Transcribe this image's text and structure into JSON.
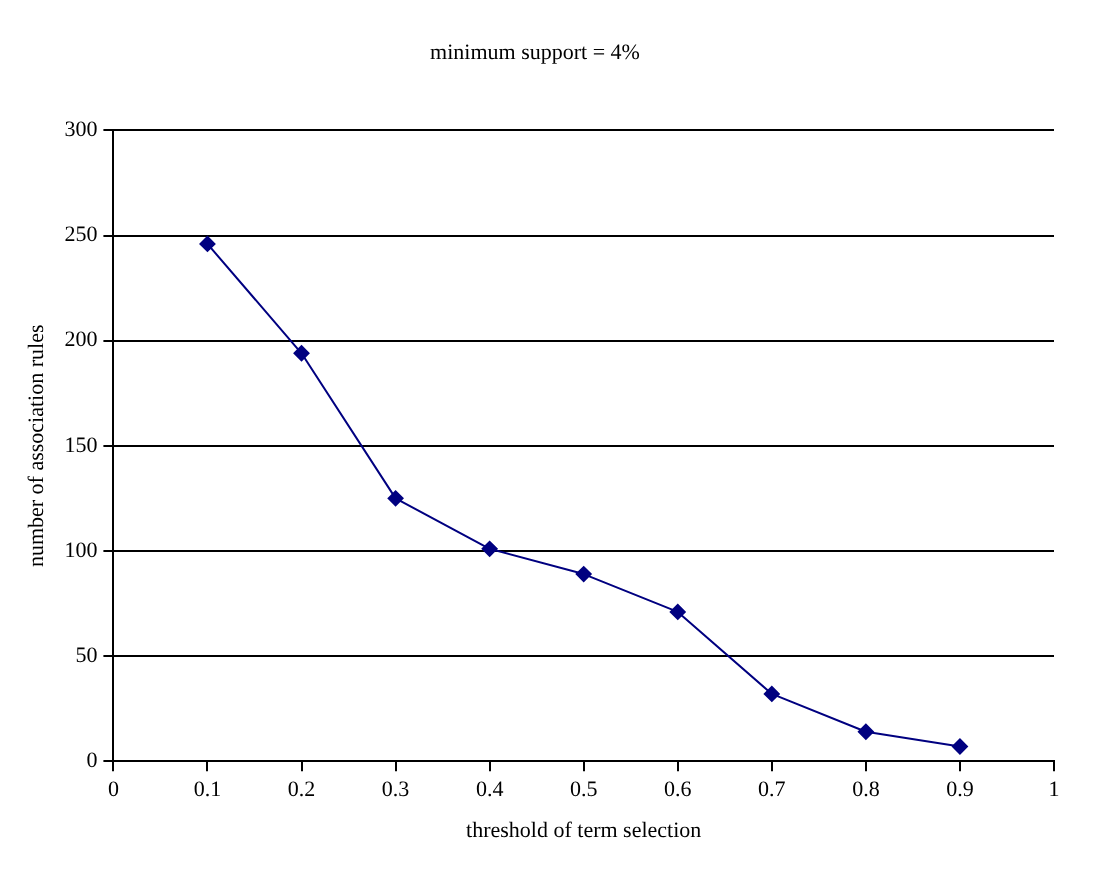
{
  "chart_data": {
    "type": "line",
    "title": "minimum support = 4%",
    "xlabel": "threshold of term selection",
    "ylabel": "number of association rules",
    "x": [
      0.1,
      0.2,
      0.3,
      0.4,
      0.5,
      0.6,
      0.7,
      0.8,
      0.9
    ],
    "series": [
      {
        "color": "#000080",
        "values": [
          246,
          194,
          125,
          101,
          89,
          71,
          32,
          14,
          7
        ]
      }
    ],
    "xlim": [
      0,
      1
    ],
    "xticks": [
      0,
      0.1,
      0.2,
      0.3,
      0.4,
      0.5,
      0.6,
      0.7,
      0.8,
      0.9,
      1
    ],
    "ylim": [
      0,
      300
    ],
    "yticks": [
      0,
      50,
      100,
      150,
      200,
      250,
      300
    ],
    "grid": "y",
    "legend": false,
    "marker": "diamond",
    "line_style": "solid"
  }
}
